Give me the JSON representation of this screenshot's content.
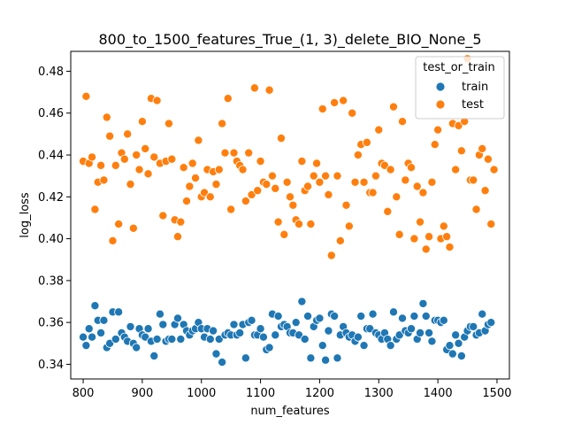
{
  "chart_data": {
    "type": "scatter",
    "title": "800_to_1500_features_True_(1, 3)_delete_BIO_None_5",
    "xlabel": "num_features",
    "ylabel": "log_loss",
    "xlim": [
      779,
      1521
    ],
    "ylim": [
      0.333,
      0.4895
    ],
    "x_ticks": [
      800,
      900,
      1000,
      1100,
      1200,
      1300,
      1400,
      1500
    ],
    "x_tick_labels": [
      "800",
      "900",
      "1000",
      "1100",
      "1200",
      "1300",
      "1400",
      "1500"
    ],
    "y_ticks": [
      0.34,
      0.36,
      0.38,
      0.4,
      0.42,
      0.44,
      0.46,
      0.48
    ],
    "y_tick_labels": [
      "0.34",
      "0.36",
      "0.38",
      "0.40",
      "0.42",
      "0.44",
      "0.46",
      "0.48"
    ],
    "grid": false,
    "legend": {
      "title": "test_or_train",
      "location": "upper right",
      "entries": [
        {
          "label": "train",
          "color": "#1f77b4"
        },
        {
          "label": "test",
          "color": "#ff7f0e"
        }
      ]
    },
    "series": [
      {
        "name": "train",
        "color": "#1f77b4",
        "points": [
          [
            800,
            0.353
          ],
          [
            805,
            0.349
          ],
          [
            810,
            0.357
          ],
          [
            815,
            0.353
          ],
          [
            820,
            0.368
          ],
          [
            825,
            0.361
          ],
          [
            830,
            0.355
          ],
          [
            835,
            0.361
          ],
          [
            840,
            0.348
          ],
          [
            845,
            0.35
          ],
          [
            850,
            0.365
          ],
          [
            855,
            0.352
          ],
          [
            860,
            0.365
          ],
          [
            865,
            0.355
          ],
          [
            870,
            0.353
          ],
          [
            875,
            0.351
          ],
          [
            880,
            0.358
          ],
          [
            885,
            0.35
          ],
          [
            890,
            0.348
          ],
          [
            895,
            0.357
          ],
          [
            900,
            0.354
          ],
          [
            905,
            0.353
          ],
          [
            910,
            0.357
          ],
          [
            915,
            0.351
          ],
          [
            920,
            0.344
          ],
          [
            925,
            0.352
          ],
          [
            930,
            0.364
          ],
          [
            935,
            0.359
          ],
          [
            940,
            0.351
          ],
          [
            945,
            0.352
          ],
          [
            950,
            0.352
          ],
          [
            955,
            0.359
          ],
          [
            960,
            0.362
          ],
          [
            965,
            0.352
          ],
          [
            970,
            0.359
          ],
          [
            975,
            0.356
          ],
          [
            980,
            0.354
          ],
          [
            985,
            0.356
          ],
          [
            990,
            0.357
          ],
          [
            995,
            0.36
          ],
          [
            1000,
            0.357
          ],
          [
            1005,
            0.353
          ],
          [
            1010,
            0.357
          ],
          [
            1015,
            0.352
          ],
          [
            1020,
            0.356
          ],
          [
            1025,
            0.345
          ],
          [
            1030,
            0.352
          ],
          [
            1035,
            0.341
          ],
          [
            1040,
            0.354
          ],
          [
            1045,
            0.355
          ],
          [
            1050,
            0.354
          ],
          [
            1055,
            0.359
          ],
          [
            1060,
            0.354
          ],
          [
            1065,
            0.355
          ],
          [
            1070,
            0.359
          ],
          [
            1075,
            0.343
          ],
          [
            1080,
            0.36
          ],
          [
            1085,
            0.361
          ],
          [
            1090,
            0.354
          ],
          [
            1095,
            0.354
          ],
          [
            1100,
            0.357
          ],
          [
            1105,
            0.353
          ],
          [
            1110,
            0.347
          ],
          [
            1115,
            0.348
          ],
          [
            1120,
            0.364
          ],
          [
            1125,
            0.354
          ],
          [
            1130,
            0.363
          ],
          [
            1135,
            0.358
          ],
          [
            1140,
            0.359
          ],
          [
            1145,
            0.358
          ],
          [
            1150,
            0.355
          ],
          [
            1155,
            0.355
          ],
          [
            1160,
            0.36
          ],
          [
            1165,
            0.354
          ],
          [
            1170,
            0.37
          ],
          [
            1175,
            0.352
          ],
          [
            1180,
            0.363
          ],
          [
            1185,
            0.343
          ],
          [
            1190,
            0.358
          ],
          [
            1195,
            0.361
          ],
          [
            1200,
            0.362
          ],
          [
            1205,
            0.349
          ],
          [
            1210,
            0.342
          ],
          [
            1215,
            0.356
          ],
          [
            1220,
            0.364
          ],
          [
            1225,
            0.363
          ],
          [
            1230,
            0.343
          ],
          [
            1235,
            0.354
          ],
          [
            1240,
            0.358
          ],
          [
            1245,
            0.355
          ],
          [
            1250,
            0.353
          ],
          [
            1255,
            0.354
          ],
          [
            1260,
            0.351
          ],
          [
            1265,
            0.353
          ],
          [
            1270,
            0.363
          ],
          [
            1275,
            0.349
          ],
          [
            1280,
            0.357
          ],
          [
            1285,
            0.357
          ],
          [
            1290,
            0.364
          ],
          [
            1295,
            0.355
          ],
          [
            1300,
            0.354
          ],
          [
            1305,
            0.352
          ],
          [
            1310,
            0.355
          ],
          [
            1315,
            0.352
          ],
          [
            1320,
            0.349
          ],
          [
            1325,
            0.365
          ],
          [
            1330,
            0.352
          ],
          [
            1335,
            0.354
          ],
          [
            1340,
            0.362
          ],
          [
            1345,
            0.356
          ],
          [
            1350,
            0.355
          ],
          [
            1355,
            0.357
          ],
          [
            1360,
            0.363
          ],
          [
            1365,
            0.352
          ],
          [
            1370,
            0.355
          ],
          [
            1375,
            0.369
          ],
          [
            1380,
            0.363
          ],
          [
            1385,
            0.355
          ],
          [
            1390,
            0.351
          ],
          [
            1395,
            0.361
          ],
          [
            1400,
            0.361
          ],
          [
            1405,
            0.36
          ],
          [
            1410,
            0.361
          ],
          [
            1415,
            0.347
          ],
          [
            1420,
            0.349
          ],
          [
            1425,
            0.345
          ],
          [
            1430,
            0.354
          ],
          [
            1435,
            0.35
          ],
          [
            1440,
            0.344
          ],
          [
            1445,
            0.353
          ],
          [
            1450,
            0.356
          ],
          [
            1455,
            0.358
          ],
          [
            1460,
            0.358
          ],
          [
            1465,
            0.354
          ],
          [
            1470,
            0.355
          ],
          [
            1475,
            0.364
          ],
          [
            1480,
            0.356
          ],
          [
            1485,
            0.359
          ],
          [
            1490,
            0.36
          ]
        ]
      },
      {
        "name": "test",
        "color": "#ff7f0e",
        "points": [
          [
            800,
            0.437
          ],
          [
            805,
            0.468
          ],
          [
            810,
            0.436
          ],
          [
            815,
            0.439
          ],
          [
            820,
            0.414
          ],
          [
            825,
            0.427
          ],
          [
            830,
            0.435
          ],
          [
            835,
            0.428
          ],
          [
            840,
            0.458
          ],
          [
            845,
            0.449
          ],
          [
            850,
            0.399
          ],
          [
            855,
            0.435
          ],
          [
            860,
            0.407
          ],
          [
            865,
            0.441
          ],
          [
            870,
            0.438
          ],
          [
            875,
            0.45
          ],
          [
            880,
            0.426
          ],
          [
            885,
            0.405
          ],
          [
            890,
            0.44
          ],
          [
            895,
            0.433
          ],
          [
            900,
            0.456
          ],
          [
            905,
            0.443
          ],
          [
            910,
            0.431
          ],
          [
            915,
            0.467
          ],
          [
            920,
            0.439
          ],
          [
            925,
            0.466
          ],
          [
            930,
            0.436
          ],
          [
            935,
            0.411
          ],
          [
            940,
            0.437
          ],
          [
            945,
            0.455
          ],
          [
            950,
            0.438
          ],
          [
            955,
            0.409
          ],
          [
            960,
            0.401
          ],
          [
            965,
            0.408
          ],
          [
            970,
            0.434
          ],
          [
            975,
            0.418
          ],
          [
            980,
            0.425
          ],
          [
            985,
            0.436
          ],
          [
            990,
            0.429
          ],
          [
            995,
            0.447
          ],
          [
            1000,
            0.42
          ],
          [
            1005,
            0.422
          ],
          [
            1010,
            0.433
          ],
          [
            1015,
            0.42
          ],
          [
            1020,
            0.432
          ],
          [
            1025,
            0.426
          ],
          [
            1030,
            0.433
          ],
          [
            1035,
            0.455
          ],
          [
            1040,
            0.441
          ],
          [
            1045,
            0.467
          ],
          [
            1050,
            0.414
          ],
          [
            1055,
            0.441
          ],
          [
            1060,
            0.437
          ],
          [
            1065,
            0.435
          ],
          [
            1070,
            0.433
          ],
          [
            1075,
            0.418
          ],
          [
            1080,
            0.441
          ],
          [
            1085,
            0.421
          ],
          [
            1090,
            0.472
          ],
          [
            1095,
            0.423
          ],
          [
            1100,
            0.437
          ],
          [
            1105,
            0.427
          ],
          [
            1110,
            0.426
          ],
          [
            1115,
            0.471
          ],
          [
            1120,
            0.43
          ],
          [
            1125,
            0.424
          ],
          [
            1130,
            0.408
          ],
          [
            1135,
            0.448
          ],
          [
            1140,
            0.402
          ],
          [
            1145,
            0.427
          ],
          [
            1150,
            0.42
          ],
          [
            1155,
            0.416
          ],
          [
            1160,
            0.409
          ],
          [
            1165,
            0.407
          ],
          [
            1170,
            0.437
          ],
          [
            1175,
            0.423
          ],
          [
            1180,
            0.425
          ],
          [
            1185,
            0.407
          ],
          [
            1190,
            0.43
          ],
          [
            1195,
            0.436
          ],
          [
            1200,
            0.427
          ],
          [
            1205,
            0.462
          ],
          [
            1210,
            0.43
          ],
          [
            1215,
            0.421
          ],
          [
            1220,
            0.392
          ],
          [
            1225,
            0.465
          ],
          [
            1230,
            0.43
          ],
          [
            1235,
            0.399
          ],
          [
            1240,
            0.466
          ],
          [
            1245,
            0.416
          ],
          [
            1250,
            0.406
          ],
          [
            1255,
            0.46
          ],
          [
            1260,
            0.427
          ],
          [
            1265,
            0.44
          ],
          [
            1270,
            0.445
          ],
          [
            1275,
            0.427
          ],
          [
            1280,
            0.446
          ],
          [
            1285,
            0.422
          ],
          [
            1290,
            0.422
          ],
          [
            1295,
            0.43
          ],
          [
            1300,
            0.452
          ],
          [
            1305,
            0.436
          ],
          [
            1310,
            0.435
          ],
          [
            1315,
            0.413
          ],
          [
            1320,
            0.433
          ],
          [
            1325,
            0.463
          ],
          [
            1330,
            0.42
          ],
          [
            1335,
            0.402
          ],
          [
            1340,
            0.456
          ],
          [
            1345,
            0.428
          ],
          [
            1350,
            0.436
          ],
          [
            1355,
            0.434
          ],
          [
            1360,
            0.4
          ],
          [
            1365,
            0.425
          ],
          [
            1370,
            0.408
          ],
          [
            1375,
            0.422
          ],
          [
            1380,
            0.395
          ],
          [
            1385,
            0.401
          ],
          [
            1390,
            0.427
          ],
          [
            1395,
            0.445
          ],
          [
            1400,
            0.452
          ],
          [
            1405,
            0.4
          ],
          [
            1410,
            0.406
          ],
          [
            1415,
            0.401
          ],
          [
            1420,
            0.396
          ],
          [
            1425,
            0.455
          ],
          [
            1430,
            0.433
          ],
          [
            1435,
            0.454
          ],
          [
            1440,
            0.442
          ],
          [
            1445,
            0.456
          ],
          [
            1450,
            0.486
          ],
          [
            1455,
            0.428
          ],
          [
            1460,
            0.428
          ],
          [
            1465,
            0.414
          ],
          [
            1470,
            0.44
          ],
          [
            1475,
            0.443
          ],
          [
            1480,
            0.423
          ],
          [
            1485,
            0.438
          ],
          [
            1490,
            0.407
          ],
          [
            1495,
            0.433
          ]
        ]
      }
    ]
  }
}
